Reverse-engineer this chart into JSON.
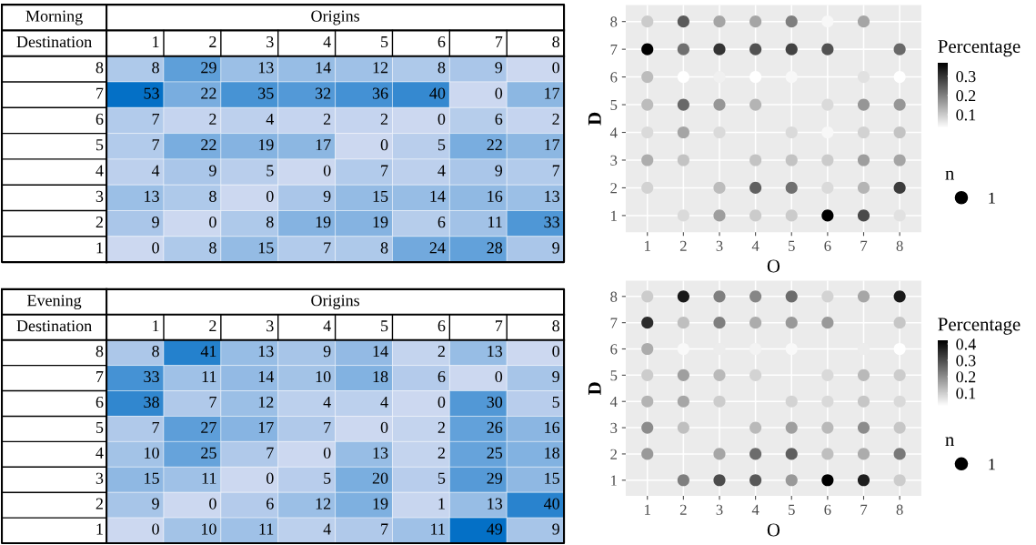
{
  "chart_data": [
    {
      "type": "heatmap",
      "title": "Morning",
      "xlabel": "Origins",
      "ylabel": "Destination",
      "categories": [
        "1",
        "2",
        "3",
        "4",
        "5",
        "6",
        "7",
        "8"
      ],
      "y_categories": [
        "8",
        "7",
        "6",
        "5",
        "4",
        "3",
        "2",
        "1"
      ],
      "data_labels": true,
      "cells": [
        [
          8,
          29,
          13,
          14,
          12,
          8,
          9,
          0
        ],
        [
          53,
          22,
          35,
          32,
          36,
          40,
          0,
          17
        ],
        [
          7,
          2,
          4,
          2,
          2,
          0,
          6,
          2
        ],
        [
          7,
          22,
          19,
          17,
          0,
          5,
          22,
          17
        ],
        [
          4,
          9,
          5,
          0,
          7,
          4,
          9,
          7
        ],
        [
          13,
          8,
          0,
          9,
          15,
          14,
          16,
          13
        ],
        [
          9,
          0,
          8,
          19,
          19,
          6,
          11,
          33
        ],
        [
          0,
          8,
          15,
          7,
          8,
          24,
          28,
          9
        ]
      ]
    },
    {
      "type": "bubble",
      "xlabel": "O",
      "ylabel": "D",
      "clabel": "Percentage",
      "legend_title": "n",
      "size_legend": [
        1
      ],
      "grid": true,
      "xlim": [
        0.4,
        8.6
      ],
      "ylim": [
        0.4,
        8.6
      ],
      "xticks": [
        1,
        2,
        3,
        4,
        5,
        6,
        7,
        8
      ],
      "yticks": [
        1,
        2,
        3,
        4,
        5,
        6,
        7,
        8
      ],
      "clim": [
        0.03,
        0.37
      ],
      "cticks": [
        0.1,
        0.2,
        0.3
      ],
      "x": [
        1,
        2,
        3,
        4,
        5,
        6,
        7,
        1,
        2,
        3,
        4,
        5,
        6,
        8,
        1,
        2,
        3,
        4,
        5,
        7,
        8,
        1,
        2,
        3,
        4,
        6,
        7,
        8,
        1,
        2,
        3,
        5,
        6,
        7,
        8,
        1,
        2,
        4,
        5,
        6,
        7,
        8,
        1,
        3,
        4,
        5,
        6,
        7,
        8,
        2,
        3,
        4,
        5,
        6,
        7,
        8
      ],
      "values": [
        8,
        8,
        8,
        8,
        8,
        8,
        8,
        7,
        7,
        7,
        7,
        7,
        7,
        7,
        6,
        6,
        6,
        6,
        6,
        6,
        6,
        5,
        5,
        5,
        5,
        5,
        5,
        5,
        4,
        4,
        4,
        4,
        4,
        4,
        4,
        3,
        3,
        3,
        3,
        3,
        3,
        3,
        2,
        2,
        2,
        2,
        2,
        2,
        2,
        1,
        1,
        1,
        1,
        1,
        1,
        1
      ],
      "cvalues": [
        0.1,
        0.25,
        0.15,
        0.15,
        0.2,
        0.04,
        0.15,
        0.37,
        0.22,
        0.3,
        0.26,
        0.28,
        0.26,
        0.23,
        0.12,
        0.03,
        0.05,
        0.03,
        0.04,
        0.07,
        0.03,
        0.12,
        0.23,
        0.17,
        0.13,
        0.08,
        0.17,
        0.17,
        0.08,
        0.15,
        0.08,
        0.08,
        0.04,
        0.09,
        0.11,
        0.14,
        0.11,
        0.11,
        0.11,
        0.1,
        0.16,
        0.15,
        0.09,
        0.12,
        0.24,
        0.22,
        0.08,
        0.13,
        0.29,
        0.08,
        0.16,
        0.1,
        0.1,
        0.37,
        0.27,
        0.07
      ],
      "sizes": [
        1,
        1,
        1,
        1,
        1,
        1,
        1,
        1,
        1,
        1,
        1,
        1,
        1,
        1,
        1,
        1,
        1,
        1,
        1,
        1,
        1,
        1,
        1,
        1,
        1,
        1,
        1,
        1,
        1,
        1,
        1,
        1,
        1,
        1,
        1,
        1,
        1,
        1,
        1,
        1,
        1,
        1,
        1,
        1,
        1,
        1,
        1,
        1,
        1,
        1,
        1,
        1,
        1,
        1,
        1,
        1
      ]
    },
    {
      "type": "heatmap",
      "title": "Evening",
      "xlabel": "Origins",
      "ylabel": "Destination",
      "categories": [
        "1",
        "2",
        "3",
        "4",
        "5",
        "6",
        "7",
        "8"
      ],
      "y_categories": [
        "8",
        "7",
        "6",
        "5",
        "4",
        "3",
        "2",
        "1"
      ],
      "data_labels": true,
      "cells": [
        [
          8,
          41,
          13,
          9,
          14,
          2,
          13,
          0
        ],
        [
          33,
          11,
          14,
          10,
          18,
          6,
          0,
          9
        ],
        [
          38,
          7,
          12,
          4,
          4,
          0,
          30,
          5
        ],
        [
          7,
          27,
          17,
          7,
          0,
          2,
          26,
          16
        ],
        [
          10,
          25,
          7,
          0,
          13,
          2,
          25,
          18
        ],
        [
          15,
          11,
          0,
          5,
          20,
          5,
          29,
          15
        ],
        [
          9,
          0,
          6,
          12,
          19,
          1,
          13,
          40
        ],
        [
          0,
          10,
          11,
          4,
          7,
          11,
          49,
          9
        ]
      ]
    },
    {
      "type": "bubble",
      "xlabel": "O",
      "ylabel": "D",
      "clabel": "Percentage",
      "legend_title": "n",
      "size_legend": [
        1
      ],
      "grid": true,
      "xlim": [
        0.4,
        8.6
      ],
      "ylim": [
        0.4,
        8.6
      ],
      "xticks": [
        1,
        2,
        3,
        4,
        5,
        6,
        7,
        8
      ],
      "yticks": [
        1,
        2,
        3,
        4,
        5,
        6,
        7,
        8
      ],
      "clim": [
        0.02,
        0.42
      ],
      "cticks": [
        0.1,
        0.2,
        0.3,
        0.4
      ],
      "x": [
        1,
        2,
        3,
        4,
        5,
        6,
        7,
        8,
        1,
        2,
        3,
        4,
        5,
        6,
        8,
        1,
        2,
        3,
        4,
        5,
        7,
        8,
        1,
        2,
        3,
        4,
        6,
        7,
        8,
        1,
        2,
        3,
        5,
        6,
        7,
        8,
        1,
        2,
        4,
        5,
        6,
        7,
        8,
        1,
        3,
        4,
        5,
        6,
        7,
        8,
        2,
        3,
        4,
        5,
        6,
        7,
        8
      ],
      "values": [
        8,
        8,
        8,
        8,
        8,
        8,
        8,
        8,
        7,
        7,
        7,
        7,
        7,
        7,
        7,
        6,
        6,
        6,
        6,
        6,
        6,
        6,
        5,
        5,
        5,
        5,
        5,
        5,
        5,
        4,
        4,
        4,
        4,
        4,
        4,
        4,
        3,
        3,
        3,
        3,
        3,
        3,
        3,
        2,
        2,
        2,
        2,
        2,
        2,
        2,
        1,
        1,
        1,
        1,
        1,
        1,
        1
      ],
      "cvalues": [
        0.1,
        0.38,
        0.22,
        0.21,
        0.25,
        0.09,
        0.16,
        0.38,
        0.35,
        0.12,
        0.22,
        0.15,
        0.18,
        0.18,
        0.11,
        0.15,
        0.03,
        0.05,
        0.04,
        0.03,
        0.05,
        0.02,
        0.1,
        0.17,
        0.13,
        0.09,
        0.08,
        0.13,
        0.1,
        0.14,
        0.16,
        0.1,
        0.09,
        0.08,
        0.11,
        0.08,
        0.2,
        0.12,
        0.13,
        0.17,
        0.13,
        0.2,
        0.11,
        0.18,
        0.16,
        0.25,
        0.27,
        0.12,
        0.15,
        0.23,
        0.22,
        0.3,
        0.28,
        0.18,
        0.42,
        0.37,
        0.1
      ],
      "sizes": [
        1,
        1,
        1,
        1,
        1,
        1,
        1,
        1,
        1,
        1,
        1,
        1,
        1,
        1,
        1,
        1,
        1,
        1,
        1,
        1,
        1,
        1,
        1,
        1,
        1,
        1,
        1,
        1,
        1,
        1,
        1,
        1,
        1,
        1,
        1,
        1,
        1,
        1,
        1,
        1,
        1,
        1,
        1,
        1,
        1,
        1,
        1,
        1,
        1,
        1,
        1,
        1,
        1,
        1,
        1,
        1,
        1
      ]
    }
  ]
}
